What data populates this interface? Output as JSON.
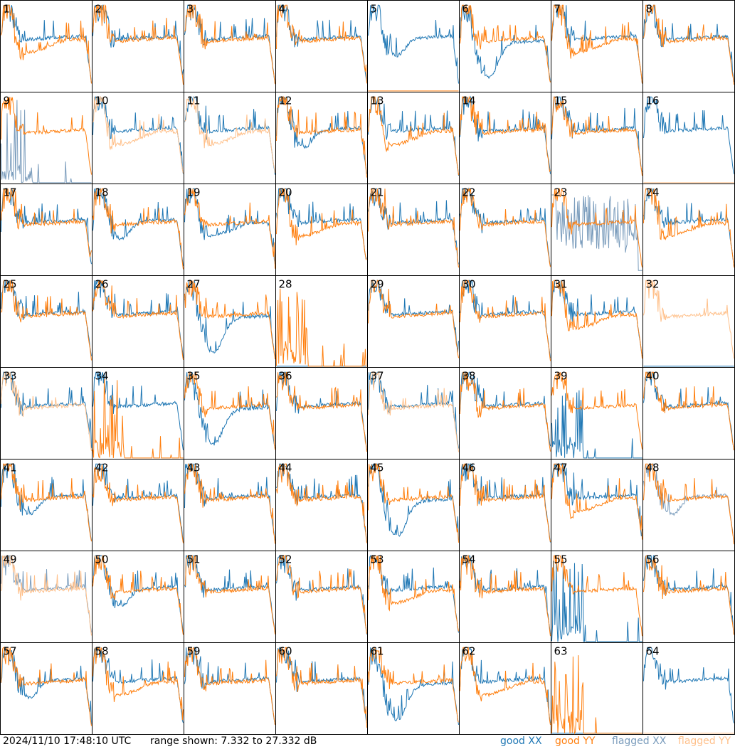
{
  "footer": {
    "timestamp": "2024/11/10 17:48:10 UTC",
    "range_text": "range shown: 7.332 to 27.332 dB"
  },
  "legend": {
    "good_xx": "good XX",
    "good_yy": "good YY",
    "flagged_xx": "flagged XX",
    "flagged_yy": "flagged YY"
  },
  "colors": {
    "good_xx": "#1f77b4",
    "good_yy": "#ff7f0e",
    "flagged_xx": "#7a9cbc",
    "flagged_yy": "#ffc08a",
    "frame": "#000000"
  },
  "chart_data": {
    "type": "line",
    "ylim": [
      7.332,
      27.332
    ],
    "yunit": "dB",
    "panels": [
      {
        "id": "1",
        "xx": "good",
        "yy": "good",
        "xx_shape": "normal",
        "yy_shape": "lowdip"
      },
      {
        "id": "2",
        "xx": "good",
        "yy": "good",
        "xx_shape": "normal",
        "yy_shape": "normal"
      },
      {
        "id": "3",
        "xx": "good",
        "yy": "good",
        "xx_shape": "normal",
        "yy_shape": "normal"
      },
      {
        "id": "4",
        "xx": "good",
        "yy": "good",
        "xx_shape": "normal",
        "yy_shape": "normal"
      },
      {
        "id": "5",
        "xx": "good",
        "yy": "good",
        "xx_shape": "dip",
        "yy_shape": "flat"
      },
      {
        "id": "6",
        "xx": "good",
        "yy": "good",
        "xx_shape": "deepdip",
        "yy_shape": "normal"
      },
      {
        "id": "7",
        "xx": "good",
        "yy": "good",
        "xx_shape": "normal",
        "yy_shape": "lowdip"
      },
      {
        "id": "8",
        "xx": "good",
        "yy": "good",
        "xx_shape": "normal",
        "yy_shape": "normal"
      },
      {
        "id": "9",
        "xx": "flagged",
        "yy": "good",
        "xx_shape": "spiky",
        "yy_shape": "normal"
      },
      {
        "id": "10",
        "xx": "good",
        "yy": "flagged",
        "xx_shape": "normal",
        "yy_shape": "lowdip"
      },
      {
        "id": "11",
        "xx": "good",
        "yy": "flagged",
        "xx_shape": "normal",
        "yy_shape": "lowdip"
      },
      {
        "id": "12",
        "xx": "good",
        "yy": "good",
        "xx_shape": "dip",
        "yy_shape": "normal"
      },
      {
        "id": "13",
        "xx": "good",
        "yy": "good",
        "xx_shape": "normal",
        "yy_shape": "lowdip"
      },
      {
        "id": "14",
        "xx": "good",
        "yy": "good",
        "xx_shape": "normal",
        "yy_shape": "normal"
      },
      {
        "id": "15",
        "xx": "good",
        "yy": "good",
        "xx_shape": "normal",
        "yy_shape": "normal"
      },
      {
        "id": "16",
        "xx": "good",
        "yy": "flagged",
        "xx_shape": "normal",
        "yy_shape": "flat"
      },
      {
        "id": "17",
        "xx": "good",
        "yy": "good",
        "xx_shape": "normal",
        "yy_shape": "normal"
      },
      {
        "id": "18",
        "xx": "good",
        "yy": "good",
        "xx_shape": "dip",
        "yy_shape": "normal"
      },
      {
        "id": "19",
        "xx": "good",
        "yy": "good",
        "xx_shape": "lowdip",
        "yy_shape": "normal"
      },
      {
        "id": "20",
        "xx": "good",
        "yy": "good",
        "xx_shape": "normal",
        "yy_shape": "lowdip"
      },
      {
        "id": "21",
        "xx": "good",
        "yy": "good",
        "xx_shape": "normal",
        "yy_shape": "normal"
      },
      {
        "id": "22",
        "xx": "good",
        "yy": "good",
        "xx_shape": "normal",
        "yy_shape": "normal"
      },
      {
        "id": "23",
        "xx": "flagged",
        "yy": "good",
        "xx_shape": "noisy",
        "yy_shape": "normal"
      },
      {
        "id": "24",
        "xx": "good",
        "yy": "good",
        "xx_shape": "normal",
        "yy_shape": "lowdip"
      },
      {
        "id": "25",
        "xx": "good",
        "yy": "good",
        "xx_shape": "normal",
        "yy_shape": "normal"
      },
      {
        "id": "26",
        "xx": "good",
        "yy": "good",
        "xx_shape": "normal",
        "yy_shape": "normal"
      },
      {
        "id": "27",
        "xx": "good",
        "yy": "good",
        "xx_shape": "deepdip",
        "yy_shape": "normal"
      },
      {
        "id": "28",
        "xx": "good",
        "yy": "good",
        "xx_shape": "flat",
        "yy_shape": "spiky"
      },
      {
        "id": "29",
        "xx": "good",
        "yy": "good",
        "xx_shape": "normal",
        "yy_shape": "normal"
      },
      {
        "id": "30",
        "xx": "good",
        "yy": "good",
        "xx_shape": "normal",
        "yy_shape": "normal"
      },
      {
        "id": "31",
        "xx": "good",
        "yy": "good",
        "xx_shape": "normal",
        "yy_shape": "lowdip"
      },
      {
        "id": "32",
        "xx": "good",
        "yy": "flagged",
        "xx_shape": "flat",
        "yy_shape": "normal"
      },
      {
        "id": "33",
        "xx": "good",
        "yy": "flagged",
        "xx_shape": "normal",
        "yy_shape": "normal"
      },
      {
        "id": "34",
        "xx": "good",
        "yy": "good",
        "xx_shape": "normal",
        "yy_shape": "spiky"
      },
      {
        "id": "35",
        "xx": "good",
        "yy": "good",
        "xx_shape": "deepdip",
        "yy_shape": "normal"
      },
      {
        "id": "36",
        "xx": "good",
        "yy": "good",
        "xx_shape": "normal",
        "yy_shape": "normal"
      },
      {
        "id": "37",
        "xx": "good",
        "yy": "flagged",
        "xx_shape": "normal",
        "yy_shape": "normal"
      },
      {
        "id": "38",
        "xx": "good",
        "yy": "good",
        "xx_shape": "normal",
        "yy_shape": "normal"
      },
      {
        "id": "39",
        "xx": "good",
        "yy": "good",
        "xx_shape": "spiky",
        "yy_shape": "normal"
      },
      {
        "id": "40",
        "xx": "good",
        "yy": "good",
        "xx_shape": "normal",
        "yy_shape": "normal"
      },
      {
        "id": "41",
        "xx": "good",
        "yy": "good",
        "xx_shape": "dip",
        "yy_shape": "normal"
      },
      {
        "id": "42",
        "xx": "good",
        "yy": "good",
        "xx_shape": "normal",
        "yy_shape": "normal"
      },
      {
        "id": "43",
        "xx": "good",
        "yy": "good",
        "xx_shape": "normal",
        "yy_shape": "normal"
      },
      {
        "id": "44",
        "xx": "good",
        "yy": "good",
        "xx_shape": "normal",
        "yy_shape": "normal"
      },
      {
        "id": "45",
        "xx": "good",
        "yy": "good",
        "xx_shape": "deepdip",
        "yy_shape": "normal"
      },
      {
        "id": "46",
        "xx": "good",
        "yy": "good",
        "xx_shape": "normal",
        "yy_shape": "normal"
      },
      {
        "id": "47",
        "xx": "good",
        "yy": "good",
        "xx_shape": "normal",
        "yy_shape": "lowdip"
      },
      {
        "id": "48",
        "xx": "flagged",
        "yy": "good",
        "xx_shape": "dip",
        "yy_shape": "normal"
      },
      {
        "id": "49",
        "xx": "flagged",
        "yy": "flagged",
        "xx_shape": "normal",
        "yy_shape": "normal"
      },
      {
        "id": "50",
        "xx": "good",
        "yy": "good",
        "xx_shape": "dip",
        "yy_shape": "normal"
      },
      {
        "id": "51",
        "xx": "good",
        "yy": "good",
        "xx_shape": "normal",
        "yy_shape": "normal"
      },
      {
        "id": "52",
        "xx": "good",
        "yy": "good",
        "xx_shape": "normal",
        "yy_shape": "normal"
      },
      {
        "id": "53",
        "xx": "good",
        "yy": "good",
        "xx_shape": "normal",
        "yy_shape": "lowdip"
      },
      {
        "id": "54",
        "xx": "good",
        "yy": "good",
        "xx_shape": "normal",
        "yy_shape": "normal"
      },
      {
        "id": "55",
        "xx": "good",
        "yy": "good",
        "xx_shape": "spiky",
        "yy_shape": "normal"
      },
      {
        "id": "56",
        "xx": "good",
        "yy": "good",
        "xx_shape": "normal",
        "yy_shape": "normal"
      },
      {
        "id": "57",
        "xx": "good",
        "yy": "good",
        "xx_shape": "dip",
        "yy_shape": "normal"
      },
      {
        "id": "58",
        "xx": "good",
        "yy": "good",
        "xx_shape": "normal",
        "yy_shape": "lowdip"
      },
      {
        "id": "59",
        "xx": "good",
        "yy": "good",
        "xx_shape": "normal",
        "yy_shape": "normal"
      },
      {
        "id": "60",
        "xx": "good",
        "yy": "good",
        "xx_shape": "normal",
        "yy_shape": "normal"
      },
      {
        "id": "61",
        "xx": "good",
        "yy": "good",
        "xx_shape": "deepdip",
        "yy_shape": "normal"
      },
      {
        "id": "62",
        "xx": "good",
        "yy": "good",
        "xx_shape": "normal",
        "yy_shape": "lowdip"
      },
      {
        "id": "63",
        "xx": "good",
        "yy": "good",
        "xx_shape": "flat",
        "yy_shape": "spiky"
      },
      {
        "id": "64",
        "xx": "good",
        "yy": "flagged",
        "xx_shape": "normal",
        "yy_shape": "flat"
      }
    ]
  }
}
